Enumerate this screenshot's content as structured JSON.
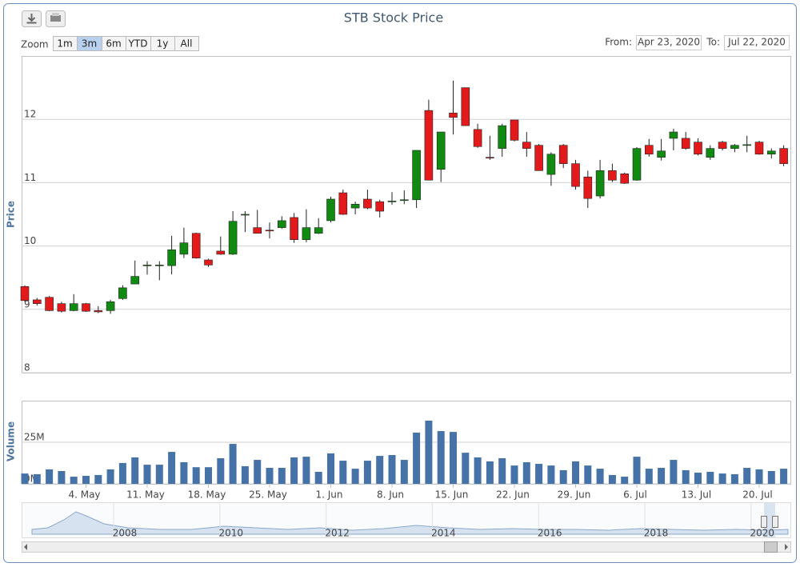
{
  "chart_data": [
    {
      "type": "candlestick",
      "title": "STB Stock Price",
      "y_label": "Price",
      "up_color": "#108a10",
      "down_color": "#e31a1c",
      "wick_color": "#222222",
      "ylim": [
        8,
        13
      ],
      "yticks": [
        8,
        9,
        10,
        11,
        12
      ],
      "grid": true,
      "open": [
        9.36,
        9.15,
        9.19,
        9.09,
        8.98,
        9.09,
        8.98,
        8.98,
        9.17,
        9.4,
        9.69,
        9.69,
        9.69,
        9.87,
        10.2,
        9.78,
        9.92,
        9.87,
        10.49,
        10.29,
        10.25,
        10.29,
        10.45,
        10.1,
        10.2,
        10.4,
        10.84,
        10.6,
        10.74,
        10.7,
        10.7,
        10.72,
        10.73,
        12.14,
        11.21,
        12.1,
        12.5,
        11.84,
        11.4,
        11.54,
        11.99,
        11.64,
        11.59,
        11.13,
        11.59,
        11.3,
        11.09,
        10.79,
        11.19,
        11.14,
        11.04,
        11.59,
        11.4,
        11.7,
        11.7,
        11.64,
        11.4,
        11.64,
        11.54,
        11.59,
        11.64,
        11.45,
        11.54
      ],
      "high": [
        9.38,
        9.18,
        9.21,
        9.12,
        9.24,
        9.1,
        9.05,
        9.15,
        9.38,
        9.77,
        9.76,
        9.76,
        10.16,
        10.29,
        10.21,
        9.8,
        10.15,
        10.55,
        10.55,
        10.57,
        10.37,
        10.47,
        10.52,
        10.58,
        10.44,
        10.78,
        10.89,
        10.7,
        10.89,
        10.73,
        10.85,
        10.88,
        11.51,
        12.31,
        11.8,
        12.61,
        12.5,
        11.93,
        11.74,
        11.93,
        11.99,
        11.8,
        11.61,
        11.48,
        11.61,
        11.36,
        11.19,
        11.36,
        11.3,
        11.16,
        11.56,
        11.69,
        11.69,
        11.85,
        11.8,
        11.7,
        11.59,
        11.66,
        11.61,
        11.74,
        11.66,
        11.54,
        11.59
      ],
      "low": [
        9.12,
        9.06,
        8.97,
        8.95,
        8.97,
        8.96,
        8.94,
        8.93,
        9.15,
        9.4,
        9.55,
        9.46,
        9.55,
        9.81,
        9.8,
        9.67,
        9.86,
        9.86,
        10.22,
        10.2,
        10.12,
        10.27,
        10.05,
        10.06,
        10.19,
        10.37,
        10.49,
        10.5,
        10.58,
        10.45,
        10.65,
        10.66,
        10.6,
        11.04,
        11.01,
        11.76,
        11.9,
        11.55,
        11.36,
        11.41,
        11.65,
        11.41,
        11.19,
        10.95,
        11.23,
        10.89,
        10.6,
        10.75,
        11.01,
        10.98,
        11.03,
        11.41,
        11.35,
        11.51,
        11.52,
        11.43,
        11.36,
        11.51,
        11.48,
        11.48,
        11.44,
        11.38,
        11.26
      ],
      "close": [
        9.14,
        9.09,
        8.98,
        8.97,
        9.09,
        8.97,
        8.96,
        9.12,
        9.34,
        9.52,
        9.7,
        9.7,
        9.94,
        10.05,
        9.81,
        9.7,
        9.87,
        10.39,
        10.5,
        10.2,
        10.24,
        10.4,
        10.1,
        10.29,
        10.29,
        10.74,
        10.5,
        10.66,
        10.6,
        10.55,
        10.71,
        10.73,
        11.51,
        11.04,
        11.8,
        12.03,
        11.9,
        11.57,
        11.39,
        11.9,
        11.67,
        11.54,
        11.19,
        11.45,
        11.3,
        10.94,
        10.75,
        11.19,
        11.04,
        10.99,
        11.54,
        11.45,
        11.5,
        11.8,
        11.54,
        11.45,
        11.54,
        11.54,
        11.59,
        11.6,
        11.45,
        11.5,
        11.3
      ]
    },
    {
      "type": "bar",
      "y_label": "Volume",
      "color": "#4572a7",
      "ylim": [
        0,
        50000000
      ],
      "yticks": [
        {
          "value": 0,
          "label": "0M"
        },
        {
          "value": 25000000,
          "label": "25M"
        }
      ],
      "grid": true,
      "categories": [
        null,
        null,
        null,
        null,
        null,
        "4. May",
        null,
        null,
        null,
        null,
        "11. May",
        null,
        null,
        null,
        null,
        "18. May",
        null,
        null,
        null,
        null,
        "25. May",
        null,
        null,
        null,
        null,
        "1. Jun",
        null,
        null,
        null,
        null,
        "8. Jun",
        null,
        null,
        null,
        null,
        "15. Jun",
        null,
        null,
        null,
        null,
        "22. Jun",
        null,
        null,
        null,
        null,
        "29. Jun",
        null,
        null,
        null,
        null,
        "6. Jul",
        null,
        null,
        null,
        null,
        "13. Jul",
        null,
        null,
        null,
        null,
        "20. Jul",
        null,
        null
      ],
      "values": [
        6200000,
        5800000,
        8700000,
        7700000,
        4300000,
        4800000,
        5300000,
        8700000,
        12500000,
        15900000,
        11500000,
        11500000,
        19200000,
        13000000,
        10000000,
        10000000,
        15400000,
        24000000,
        10600000,
        14400000,
        9600000,
        9600000,
        15900000,
        16300000,
        7200000,
        18300000,
        13900000,
        9100000,
        13900000,
        16800000,
        17300000,
        14400000,
        30800000,
        38000000,
        31700000,
        31200000,
        18700000,
        15900000,
        13500000,
        15400000,
        11000000,
        13000000,
        12000000,
        11000000,
        8200000,
        13500000,
        11000000,
        9100000,
        5300000,
        4300000,
        16300000,
        9100000,
        9600000,
        14400000,
        8200000,
        6700000,
        7200000,
        6200000,
        5800000,
        9600000,
        8700000,
        7700000,
        9100000
      ]
    }
  ],
  "ui": {
    "zoom_label": "Zoom",
    "zoom_buttons": [
      "1m",
      "3m",
      "6m",
      "YTD",
      "1y",
      "All"
    ],
    "selected_zoom": 1,
    "from_label": "From:",
    "from": "Apr 23, 2020",
    "to_label": "To:",
    "to": "Jul 22, 2020"
  },
  "navigator": {
    "years": [
      "2008",
      "2010",
      "2012",
      "2014",
      "2016",
      "2018",
      "2020"
    ]
  }
}
